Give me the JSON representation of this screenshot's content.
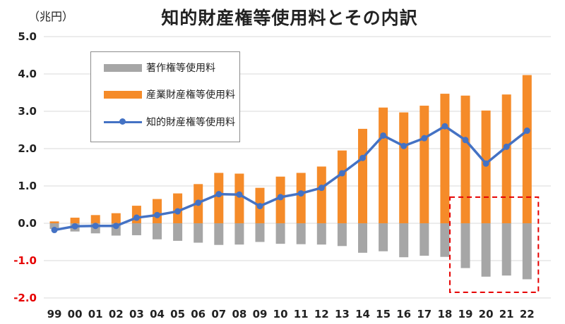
{
  "colors": {
    "copyright": "#a6a6a6",
    "industrial": "#f58b29",
    "total": "#4472c4",
    "grid": "#d9d9d9",
    "negative_tick": "#e60000",
    "highlight_box": "#e60000"
  },
  "chart_data": {
    "type": "bar",
    "title": "知的財産権等使用料とその内訳",
    "unit": "（兆円）",
    "ylim": [
      -2.0,
      5.0
    ],
    "yticks": [
      "5.0",
      "4.0",
      "3.0",
      "2.0",
      "1.0",
      "0.0",
      "-1.0",
      "-2.0"
    ],
    "ytick_values": [
      5.0,
      4.0,
      3.0,
      2.0,
      1.0,
      0.0,
      -1.0,
      -2.0
    ],
    "grid": true,
    "legend_position": "top-left",
    "categories": [
      "99",
      "00",
      "01",
      "02",
      "03",
      "04",
      "05",
      "06",
      "07",
      "08",
      "09",
      "10",
      "11",
      "12",
      "13",
      "14",
      "15",
      "16",
      "17",
      "18",
      "19",
      "20",
      "21",
      "22"
    ],
    "series": [
      {
        "name": "著作権等使用料",
        "kind": "bar",
        "values": [
          -0.15,
          -0.22,
          -0.27,
          -0.33,
          -0.32,
          -0.43,
          -0.47,
          -0.52,
          -0.58,
          -0.57,
          -0.5,
          -0.55,
          -0.56,
          -0.57,
          -0.61,
          -0.79,
          -0.75,
          -0.91,
          -0.87,
          -0.9,
          -1.2,
          -1.43,
          -1.4,
          -1.5
        ]
      },
      {
        "name": "産業財産権等使用料",
        "kind": "bar",
        "values": [
          0.05,
          0.15,
          0.22,
          0.27,
          0.47,
          0.65,
          0.8,
          1.05,
          1.35,
          1.33,
          0.95,
          1.25,
          1.35,
          1.52,
          1.95,
          2.53,
          3.1,
          2.97,
          3.15,
          3.47,
          3.42,
          3.02,
          3.45,
          3.97
        ]
      },
      {
        "name": "知的財産権等使用料",
        "kind": "line",
        "values": [
          -0.18,
          -0.08,
          -0.07,
          -0.07,
          0.15,
          0.22,
          0.32,
          0.55,
          0.78,
          0.77,
          0.46,
          0.7,
          0.8,
          0.95,
          1.34,
          1.75,
          2.35,
          2.07,
          2.28,
          2.6,
          2.23,
          1.6,
          2.05,
          2.48
        ]
      }
    ],
    "highlight_range": {
      "from": "19",
      "to": "22",
      "y_top": 0.7,
      "y_bottom": -1.85
    }
  }
}
